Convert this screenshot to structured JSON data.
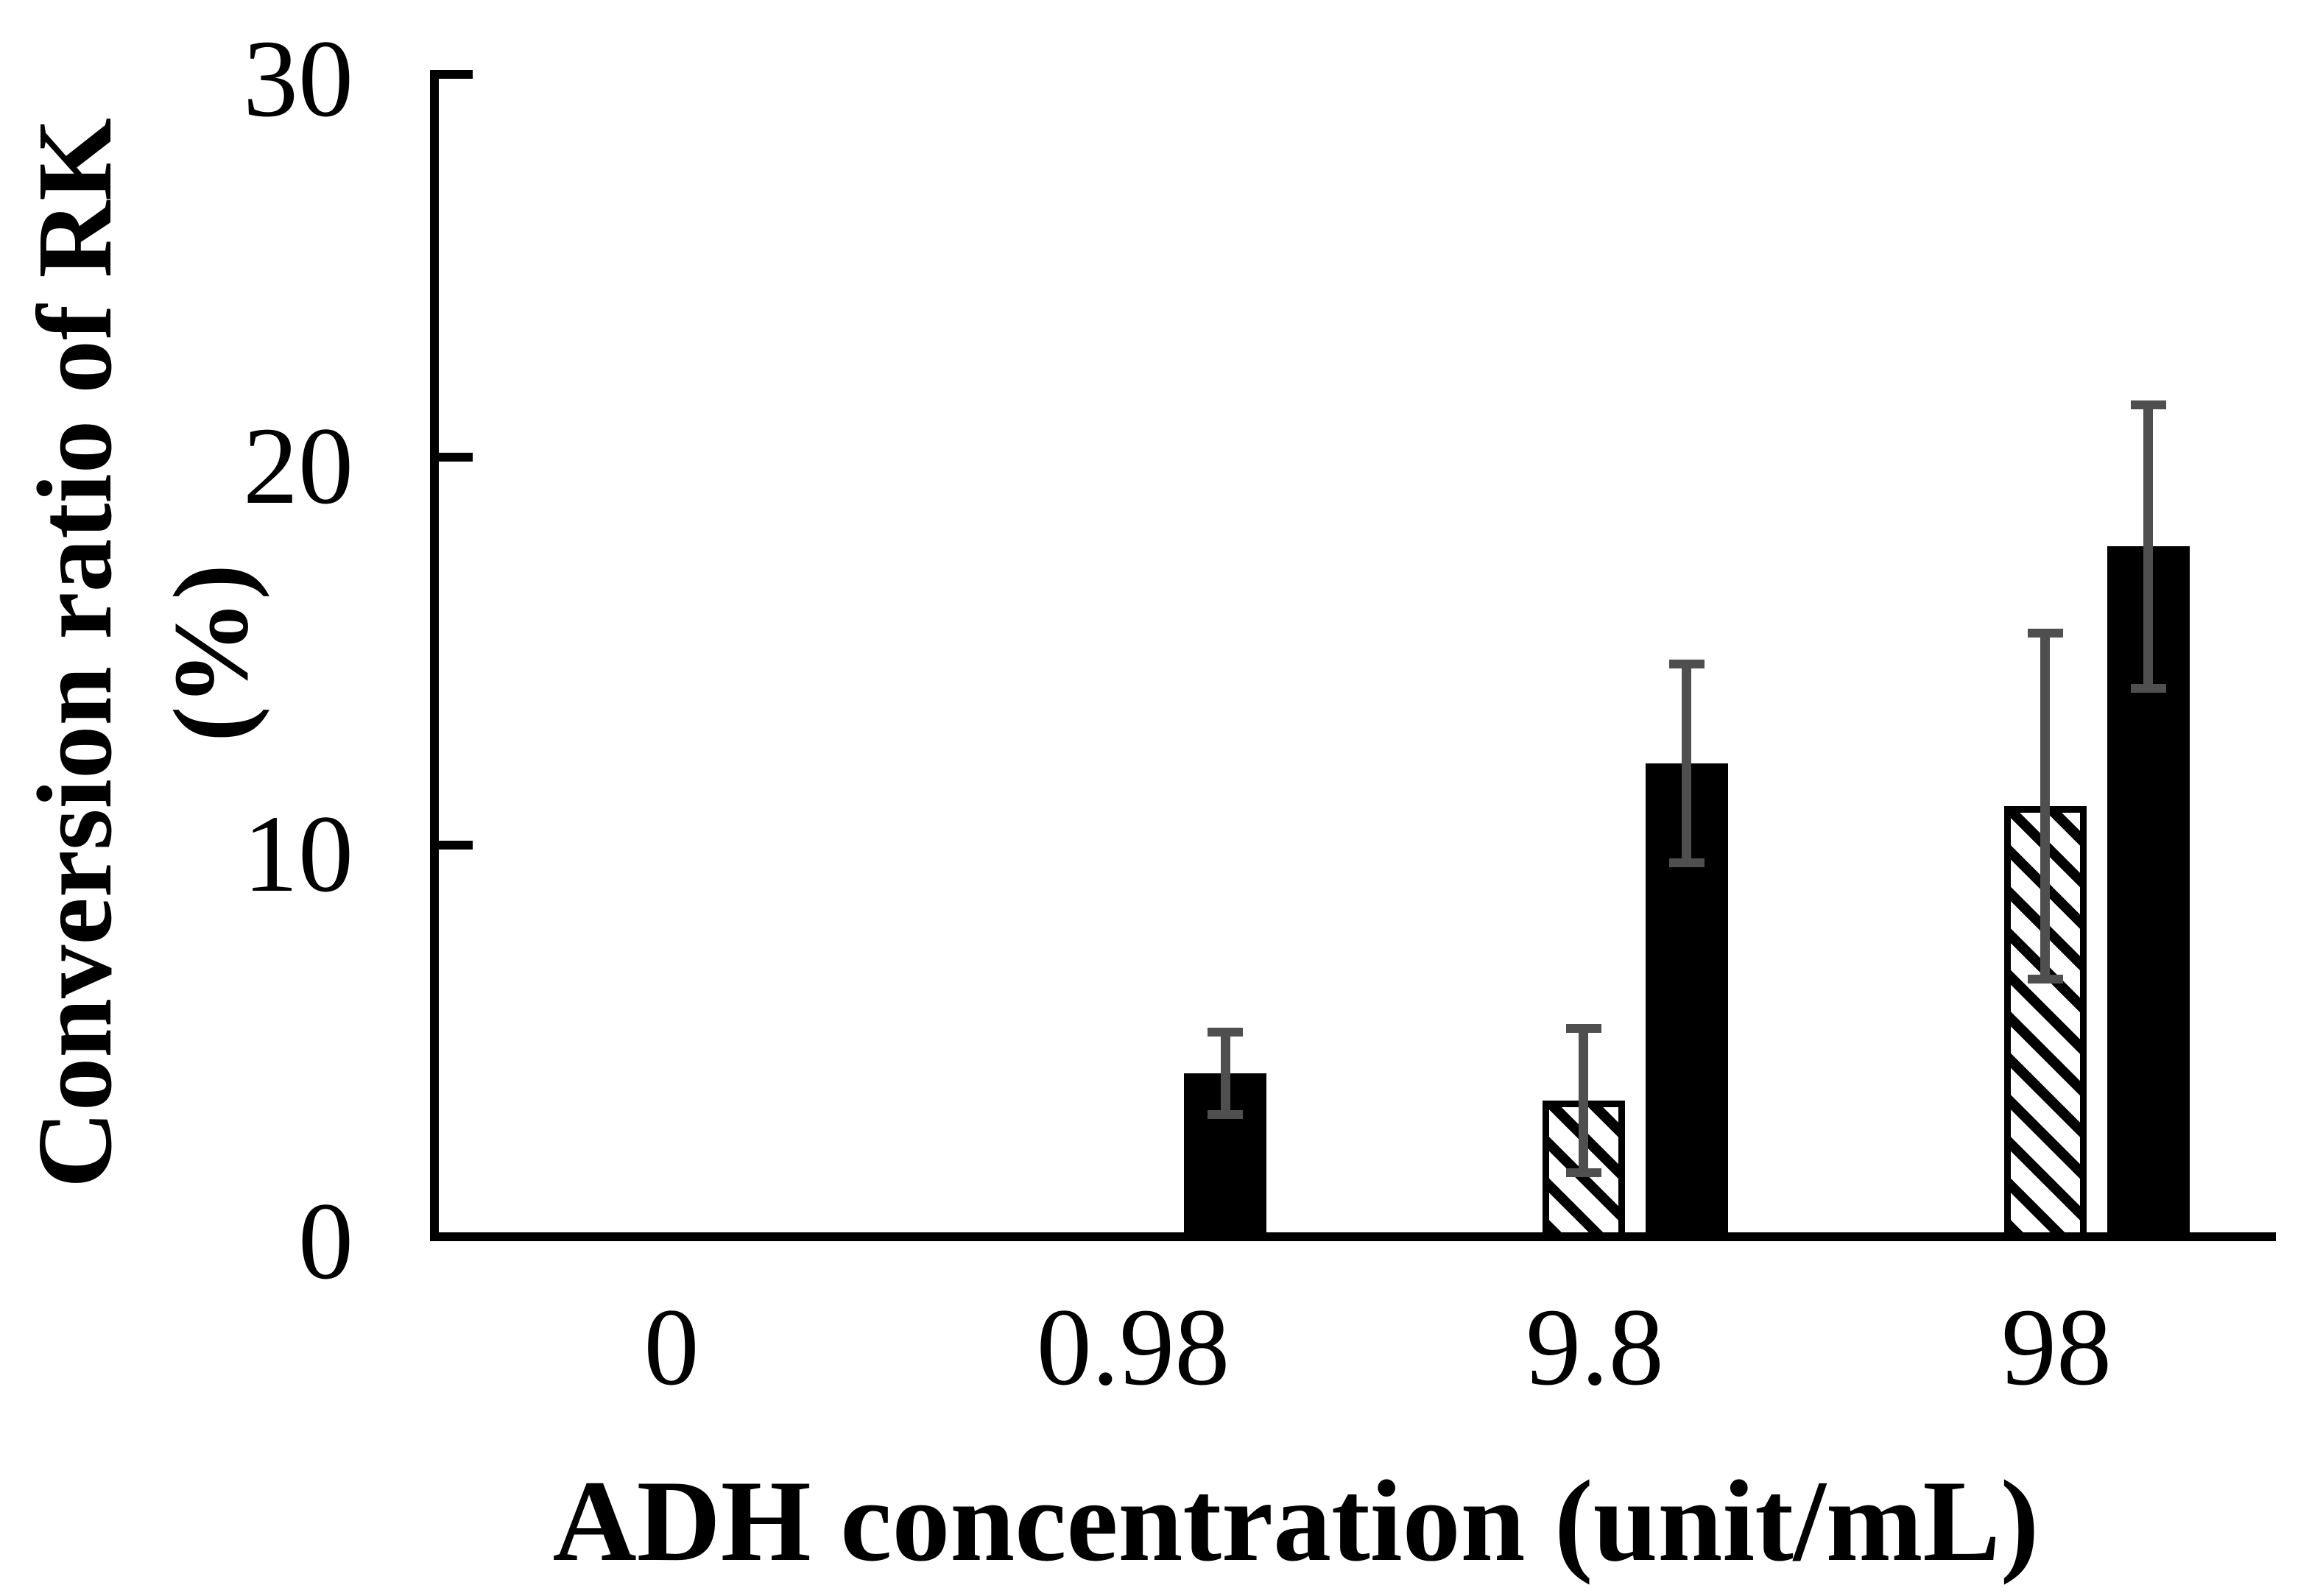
{
  "chart_data": {
    "type": "bar",
    "title": "",
    "xlabel": "ADH concentration (unit/mL)",
    "ylabel": "Conversion ratio of RK (%)",
    "ylabel_lines": [
      "Conversion ratio of RK",
      "(%)"
    ],
    "categories": [
      "0",
      "0.98",
      "9.8",
      "98"
    ],
    "series": [
      {
        "name": "hatched-bar-series",
        "pattern": "diagonal-hatch",
        "values": [
          0,
          0,
          3.4,
          11.0
        ],
        "error_bars": [
          0,
          0,
          1.9,
          4.5
        ]
      },
      {
        "name": "solid-black-bar-series",
        "pattern": "solid-black",
        "values": [
          0,
          4.1,
          12.1,
          17.7
        ],
        "error_bars": [
          0,
          1.1,
          2.6,
          3.7
        ]
      }
    ],
    "ylim": [
      0,
      30
    ],
    "yticks": [
      "0",
      "10",
      "20",
      "30"
    ],
    "grid": "off",
    "legend": "none",
    "colors": {
      "bar_fill": "#000000",
      "hatch_background": "#ffffff",
      "error_bar": "#4f4f4f",
      "axis": "#000000",
      "background": "#ffffff"
    }
  }
}
